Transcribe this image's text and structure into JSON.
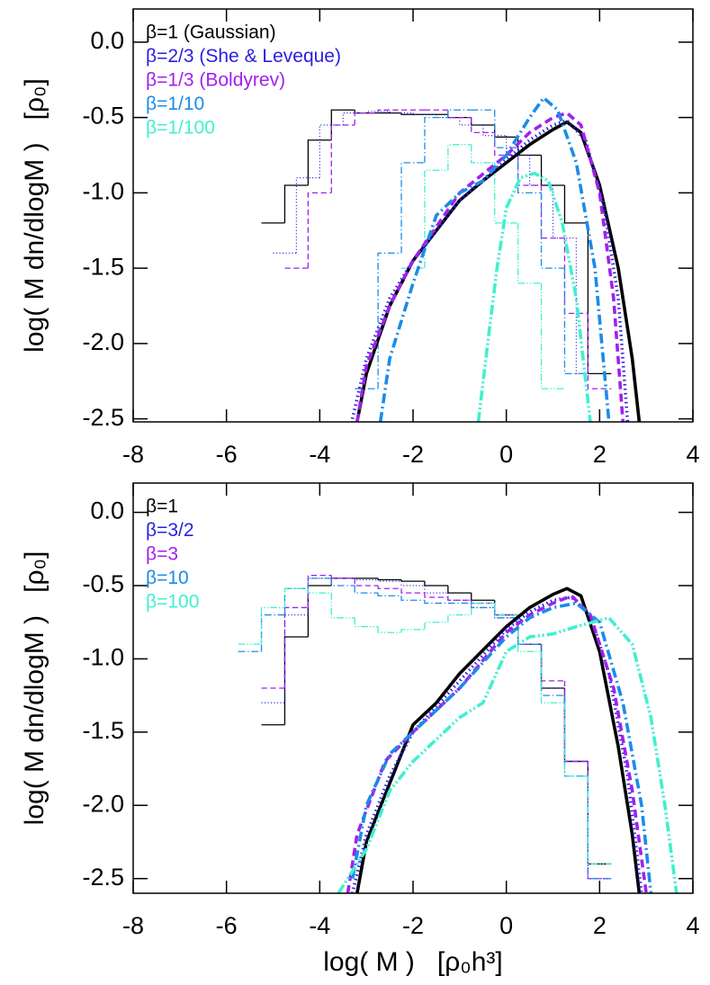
{
  "chart_data": [
    {
      "type": "line",
      "ylabel": "log( M dn/dlogM )   [ρ₀]",
      "legend": "upper left",
      "xlim": [
        -8,
        4
      ],
      "ylim": [
        -2.52,
        0.22
      ],
      "xticks": [
        -8,
        -6,
        -4,
        -2,
        0,
        2,
        4
      ],
      "yticks": [
        {
          "value": 0,
          "label": "0.0"
        },
        -0.5,
        {
          "value": -1,
          "label": "-1.0"
        },
        -1.5,
        {
          "value": -2,
          "label": "-2.0"
        },
        -2.5
      ],
      "series": [
        {
          "name": "β=1 (Gaussian)",
          "color": "#000000",
          "style": "solid",
          "x": [
            -3.2,
            -3.0,
            -2.5,
            -2,
            -1.5,
            -1,
            -0.5,
            0,
            0.5,
            1,
            1.3,
            1.6,
            2,
            2.4,
            2.7,
            2.85
          ],
          "values": [
            -2.52,
            -2.2,
            -1.75,
            -1.45,
            -1.25,
            -1.05,
            -0.92,
            -0.8,
            -0.68,
            -0.58,
            -0.53,
            -0.6,
            -0.95,
            -1.5,
            -2.1,
            -2.52
          ]
        },
        {
          "name": "β=2/3 (She & Leveque)",
          "color": "#2a1ee0",
          "style": "dotted",
          "x": [
            -3.3,
            -3.0,
            -2.5,
            -2,
            -1,
            0,
            0.5,
            1,
            1.3,
            1.7,
            2.1,
            2.4,
            2.6
          ],
          "values": [
            -2.5,
            -2.1,
            -1.7,
            -1.45,
            -1.05,
            -0.78,
            -0.65,
            -0.55,
            -0.52,
            -0.65,
            -1.1,
            -1.7,
            -2.52
          ]
        },
        {
          "name": "β=1/3 (Boldyrev)",
          "color": "#a020f0",
          "style": "dashed",
          "x": [
            -3.2,
            -3,
            -2.5,
            -2,
            -1,
            0,
            0.5,
            1,
            1.3,
            1.6,
            2,
            2.3,
            2.5
          ],
          "values": [
            -2.52,
            -2.15,
            -1.75,
            -1.45,
            -1.0,
            -0.75,
            -0.6,
            -0.5,
            -0.47,
            -0.55,
            -1.0,
            -1.7,
            -2.52
          ]
        },
        {
          "name": "β=1/10",
          "color": "#1a8ce8",
          "style": "dashdot",
          "x": [
            -2.7,
            -2.5,
            -2,
            -1.5,
            -1,
            -0.5,
            0,
            0.5,
            0.8,
            1.1,
            1.5,
            1.9,
            2.2
          ],
          "values": [
            -2.52,
            -2.1,
            -1.6,
            -1.15,
            -1.0,
            -0.92,
            -0.75,
            -0.5,
            -0.37,
            -0.45,
            -0.8,
            -1.5,
            -2.52
          ]
        },
        {
          "name": "β=1/100",
          "color": "#3ff0d0",
          "style": "dashdotdot",
          "x": [
            -0.6,
            -0.4,
            -0.2,
            0,
            0.3,
            0.6,
            0.9,
            1.2,
            1.5,
            1.8
          ],
          "values": [
            -2.52,
            -2.0,
            -1.5,
            -1.1,
            -0.9,
            -0.87,
            -0.92,
            -1.2,
            -1.7,
            -2.52
          ]
        }
      ],
      "histograms": [
        {
          "color": "#000000",
          "style": "solid",
          "bins": [
            -5.25,
            -4.75,
            -4.25,
            -3.75,
            -3.25,
            -2.75,
            -2.25,
            -1.75,
            -1.25,
            -0.75,
            -0.25,
            0.25,
            0.75,
            1.25,
            1.75,
            2.25
          ],
          "values": [
            -1.2,
            -0.95,
            -0.65,
            -0.45,
            -0.47,
            -0.47,
            -0.48,
            -0.48,
            -0.5,
            -0.55,
            -0.63,
            -0.75,
            -0.95,
            -1.2,
            -2.2
          ]
        },
        {
          "color": "#2a1ee0",
          "style": "dotted",
          "bins": [
            -5.0,
            -4.5,
            -4.0,
            -3.5,
            -3.0,
            -2.5,
            -2.0,
            -1.5,
            -1.0,
            -0.5,
            0,
            0.5,
            1.0,
            1.5,
            2.0
          ],
          "values": [
            -1.4,
            -0.9,
            -0.55,
            -0.47,
            -0.46,
            -0.47,
            -0.48,
            -0.5,
            -0.55,
            -0.62,
            -0.75,
            -0.95,
            -1.3,
            -2.2
          ]
        },
        {
          "color": "#a020f0",
          "style": "dashed",
          "bins": [
            -4.75,
            -4.25,
            -3.75,
            -3.25,
            -2.75,
            -2.25,
            -1.75,
            -1.25,
            -0.75,
            -0.25,
            0.25,
            0.75,
            1.25,
            1.75,
            2.25
          ],
          "values": [
            -1.5,
            -1.0,
            -0.55,
            -0.47,
            -0.45,
            -0.45,
            -0.45,
            -0.5,
            -0.6,
            -0.75,
            -0.95,
            -1.3,
            -1.8,
            -2.3
          ]
        },
        {
          "color": "#1a8ce8",
          "style": "dashdot",
          "bins": [
            -3.25,
            -2.75,
            -2.25,
            -1.75,
            -1.25,
            -0.75,
            -0.25,
            0.25,
            0.75,
            1.25,
            1.75
          ],
          "values": [
            -2.3,
            -1.4,
            -0.8,
            -0.5,
            -0.45,
            -0.45,
            -0.7,
            -1.0,
            -1.5,
            -2.2
          ]
        },
        {
          "color": "#3ff0d0",
          "style": "dashdotdot",
          "bins": [
            -2.25,
            -1.75,
            -1.25,
            -0.75,
            -0.25,
            0.25,
            0.75,
            1.25
          ],
          "values": [
            -1.5,
            -0.85,
            -0.68,
            -0.8,
            -1.2,
            -1.6,
            -2.3
          ]
        }
      ]
    },
    {
      "type": "line",
      "ylabel": "log( M dn/dlogM )   [ρ₀]",
      "xlabel": "log( M )   [ρ₀h³]",
      "legend": "upper left",
      "xlim": [
        -8,
        4
      ],
      "ylim": [
        -2.6,
        0.2
      ],
      "xticks": [
        -8,
        -6,
        -4,
        -2,
        0,
        2,
        4
      ],
      "yticks": [
        {
          "value": 0,
          "label": "0.0"
        },
        -0.5,
        {
          "value": -1,
          "label": "-1.0"
        },
        -1.5,
        {
          "value": -2,
          "label": "-2.0"
        },
        -2.5
      ],
      "series": [
        {
          "name": "β=1",
          "color": "#000000",
          "style": "solid",
          "x": [
            -3.2,
            -3,
            -2.5,
            -2,
            -1.5,
            -1,
            0,
            0.5,
            1,
            1.3,
            1.6,
            2,
            2.4,
            2.7,
            2.85
          ],
          "values": [
            -2.6,
            -2.25,
            -1.85,
            -1.45,
            -1.3,
            -1.1,
            -0.78,
            -0.65,
            -0.56,
            -0.52,
            -0.57,
            -0.95,
            -1.6,
            -2.2,
            -2.6
          ]
        },
        {
          "name": "β=3/2",
          "color": "#2a1ee0",
          "style": "dotted",
          "x": [
            -3.3,
            -3,
            -2.5,
            -2,
            -1,
            0,
            0.5,
            1,
            1.4,
            1.8,
            2.2,
            2.6,
            2.9
          ],
          "values": [
            -2.6,
            -2.2,
            -1.8,
            -1.5,
            -1.15,
            -0.8,
            -0.68,
            -0.6,
            -0.58,
            -0.7,
            -1.1,
            -1.8,
            -2.6
          ]
        },
        {
          "name": "β=3",
          "color": "#a020f0",
          "style": "dashed",
          "x": [
            -3.4,
            -3.2,
            -2.6,
            -2,
            -1,
            0,
            0.5,
            1,
            1.4,
            1.8,
            2.3,
            2.7,
            3.0
          ],
          "values": [
            -2.6,
            -2.2,
            -1.7,
            -1.5,
            -1.2,
            -0.82,
            -0.7,
            -0.62,
            -0.57,
            -0.7,
            -1.2,
            -1.9,
            -2.6
          ]
        },
        {
          "name": "β=10",
          "color": "#1a8ce8",
          "style": "dashdot",
          "x": [
            -3.3,
            -3,
            -2.5,
            -2,
            -1,
            0,
            0.5,
            1,
            1.5,
            2,
            2.5,
            2.9,
            3.1
          ],
          "values": [
            -2.5,
            -2.0,
            -1.65,
            -1.5,
            -1.2,
            -0.85,
            -0.72,
            -0.65,
            -0.62,
            -0.75,
            -1.3,
            -2.0,
            -2.6
          ]
        },
        {
          "name": "β=100",
          "color": "#3ff0d0",
          "style": "dashdotdot",
          "x": [
            -3.6,
            -3,
            -2.5,
            -2,
            -1.5,
            -1,
            -0.5,
            0,
            0.5,
            1,
            1.5,
            2.2,
            2.7,
            3.1,
            3.4,
            3.65
          ],
          "values": [
            -2.6,
            -2.3,
            -1.9,
            -1.7,
            -1.55,
            -1.4,
            -1.3,
            -0.95,
            -0.85,
            -0.83,
            -0.78,
            -0.72,
            -0.9,
            -1.4,
            -2.0,
            -2.6
          ]
        }
      ],
      "histograms": [
        {
          "color": "#000000",
          "style": "solid",
          "bins": [
            -5.25,
            -4.75,
            -4.25,
            -3.75,
            -3.25,
            -2.75,
            -2.25,
            -1.75,
            -1.25,
            -0.75,
            -0.25,
            0.25,
            0.75,
            1.25,
            1.75,
            2.25
          ],
          "values": [
            -1.45,
            -0.85,
            -0.5,
            -0.45,
            -0.45,
            -0.46,
            -0.47,
            -0.5,
            -0.55,
            -0.6,
            -0.7,
            -0.9,
            -1.2,
            -1.7,
            -2.4
          ]
        },
        {
          "color": "#2a1ee0",
          "style": "dotted",
          "bins": [
            -5.25,
            -4.75,
            -4.25,
            -3.75,
            -3.25,
            -2.75,
            -2.25,
            -1.75,
            -1.25,
            -0.75,
            -0.25,
            0.25,
            0.75,
            1.25,
            1.75,
            2.25
          ],
          "values": [
            -1.3,
            -0.7,
            -0.45,
            -0.45,
            -0.46,
            -0.47,
            -0.5,
            -0.55,
            -0.6,
            -0.65,
            -0.72,
            -0.9,
            -1.2,
            -1.7,
            -2.5
          ]
        },
        {
          "color": "#a020f0",
          "style": "dashed",
          "bins": [
            -5.25,
            -4.75,
            -4.25,
            -3.75,
            -3.25,
            -2.75,
            -2.25,
            -1.75,
            -1.25,
            -0.75,
            -0.25,
            0.25,
            0.75,
            1.25,
            1.75,
            2.25
          ],
          "values": [
            -1.2,
            -0.65,
            -0.43,
            -0.45,
            -0.5,
            -0.52,
            -0.55,
            -0.58,
            -0.6,
            -0.62,
            -0.7,
            -0.9,
            -1.15,
            -1.7,
            -2.5
          ]
        },
        {
          "color": "#1a8ce8",
          "style": "dashdot",
          "bins": [
            -5.75,
            -5.25,
            -4.75,
            -4.25,
            -3.75,
            -3.25,
            -2.75,
            -2.25,
            -1.75,
            -1.25,
            -0.75,
            -0.25,
            0.25,
            0.75,
            1.25,
            1.75,
            2.25
          ],
          "values": [
            -0.95,
            -0.7,
            -0.52,
            -0.45,
            -0.5,
            -0.55,
            -0.57,
            -0.6,
            -0.62,
            -0.62,
            -0.65,
            -0.72,
            -0.9,
            -1.25,
            -1.8,
            -2.5
          ]
        },
        {
          "color": "#3ff0d0",
          "style": "dashdotdot",
          "bins": [
            -5.75,
            -5.25,
            -4.75,
            -4.25,
            -3.75,
            -3.25,
            -2.75,
            -2.25,
            -1.75,
            -1.25,
            -0.75,
            -0.25,
            0.25,
            0.75,
            1.25,
            1.75,
            2.25
          ],
          "values": [
            -0.9,
            -0.65,
            -0.52,
            -0.55,
            -0.72,
            -0.78,
            -0.82,
            -0.8,
            -0.75,
            -0.7,
            -0.62,
            -0.7,
            -0.95,
            -1.3,
            -1.8,
            -2.4
          ]
        }
      ]
    }
  ]
}
